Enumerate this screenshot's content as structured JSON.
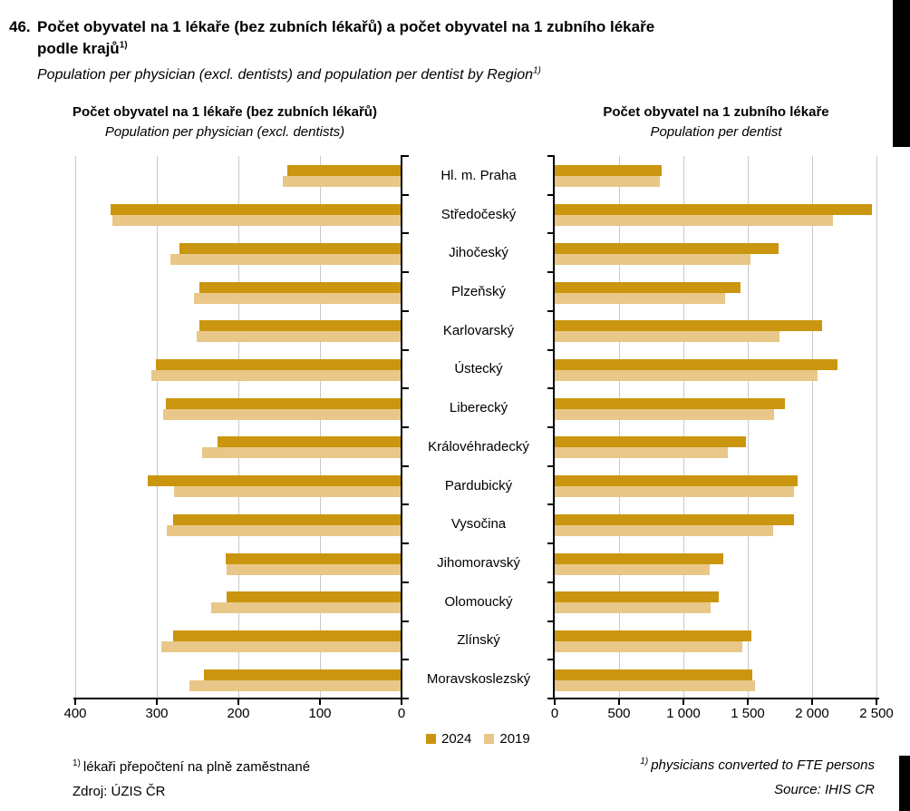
{
  "header": {
    "number": "46.",
    "title_cs_line1": "Počet obyvatel na 1 lékaře (bez zubních lékařů) a počet obyvatel na 1 zubního lékaře",
    "title_cs_line2": "podle krajů",
    "footnote_marker": "1)",
    "subtitle_en": "Population per physician (excl. dentists) and population per dentist by Region"
  },
  "chart_data": [
    {
      "id": "population-per-physician",
      "type": "bar",
      "orientation": "horizontal",
      "value_axis_direction": "right-to-left",
      "title_cs": "Počet obyvatel na 1 lékaře (bez zubních lékařů)",
      "title_en": "Population per physician (excl. dentists)",
      "axis": {
        "min": 0,
        "max": 400,
        "tick_values": [
          400,
          300,
          200,
          100,
          0
        ],
        "tick_labels": [
          "400",
          "300",
          "200",
          "100",
          "0"
        ],
        "gridline_values": [
          400,
          300,
          200,
          100
        ]
      },
      "categories": [
        "Hl. m. Praha",
        "Středočeský",
        "Jihočeský",
        "Plzeňský",
        "Karlovarský",
        "Ústecký",
        "Liberecký",
        "Královéhradecký",
        "Pardubický",
        "Vysočina",
        "Jihomoravský",
        "Olomoucký",
        "Zlínský",
        "Moravskoslezský"
      ],
      "series": [
        {
          "name": "2024",
          "color": "#CA960F",
          "values": [
            140,
            357,
            272,
            248,
            248,
            301,
            289,
            226,
            311,
            280,
            216,
            215,
            280,
            242
          ]
        },
        {
          "name": "2019",
          "color": "#E8C788",
          "values": [
            146,
            355,
            283,
            254,
            251,
            307,
            292,
            245,
            279,
            288,
            215,
            233,
            295,
            260
          ]
        }
      ]
    },
    {
      "id": "population-per-dentist",
      "type": "bar",
      "orientation": "horizontal",
      "value_axis_direction": "left-to-right",
      "title_cs": "Počet obyvatel na 1 zubního lékaře",
      "title_en": "Population per dentist",
      "axis": {
        "min": 0,
        "max": 2500,
        "tick_values": [
          0,
          500,
          1000,
          1500,
          2000,
          2500
        ],
        "tick_labels": [
          "0",
          "500",
          "1 000",
          "1 500",
          "2 000",
          "2 500"
        ],
        "gridline_values": [
          500,
          1000,
          1500,
          2000,
          2500
        ]
      },
      "categories": [
        "Hl. m. Praha",
        "Středočeský",
        "Jihočeský",
        "Plzeňský",
        "Karlovarský",
        "Ústecký",
        "Liberecký",
        "Královéhradecký",
        "Pardubický",
        "Vysočina",
        "Jihomoravský",
        "Olomoucký",
        "Zlínský",
        "Moravskoslezský"
      ],
      "series": [
        {
          "name": "2024",
          "color": "#CA960F",
          "values": [
            830,
            2465,
            1740,
            1445,
            2075,
            2195,
            1790,
            1485,
            1885,
            1860,
            1310,
            1275,
            1530,
            1535
          ]
        },
        {
          "name": "2019",
          "color": "#E8C788",
          "values": [
            815,
            2160,
            1520,
            1325,
            1745,
            2040,
            1705,
            1345,
            1860,
            1695,
            1205,
            1210,
            1455,
            1555
          ]
        }
      ]
    }
  ],
  "legend": {
    "items": [
      {
        "label": "2024",
        "color": "#CA960F"
      },
      {
        "label": "2019",
        "color": "#E8C788"
      }
    ]
  },
  "footnotes": {
    "cs": {
      "marker": "1)",
      "text": "lékaři přepočtení na plně zaměstnané",
      "source": "Zdroj: ÚZIS ČR"
    },
    "en": {
      "marker": "1)",
      "text": "physicians converted to FTE persons",
      "source": "Source: IHIS CR"
    }
  }
}
